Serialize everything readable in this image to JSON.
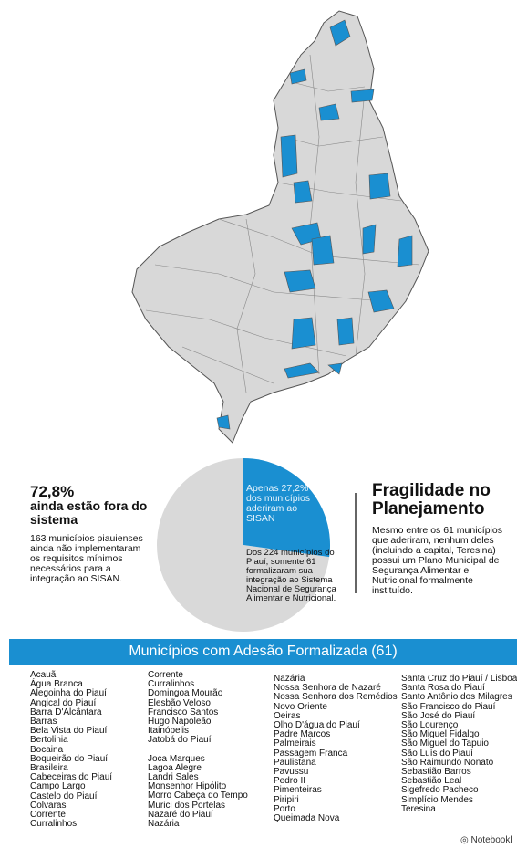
{
  "pie": {
    "type": "pie",
    "values": [
      72.8,
      27.2
    ],
    "colors": [
      "#d9d9d9",
      "#1a8fd1"
    ]
  },
  "left": {
    "headline": "72,8%",
    "subhead": "ainda estão fora do sistema",
    "body": "163 municípios piauienses ainda não implementaram os requisitos mínimos necessários para a integração ao SISAN."
  },
  "slice_label": "Apenas 27,2% dos municípios aderiram ao SISAN",
  "pie_note": "Dos 224 municípios do Piauí, somente 61 formalizaram sua integração ao Sistema Nacional de Segurança Alimentar e Nutricional.",
  "right": {
    "title": "Fragilidade no Planejamento",
    "body": "Mesmo entre os 61 municípios que aderiram, nenhum deles (incluindo a capital, Teresina) possui um Plano Municipal de Segurança Alimentar e Nutricional formalmente instituído."
  },
  "banner": "Municípios com Adesão Formalizada (61)",
  "columns": [
    [
      "Acauã",
      "Água Branca",
      "Alegoinha do Piauí",
      "Angical do Piauí",
      "Barra D'Alcântara",
      "Barras",
      "Bela Vista do Piauí",
      "Bertolinia",
      "Bocaina",
      "Boqueirão do Piauí",
      "Brasileira",
      "Cabeceiras do Piauí",
      "Campo Largo",
      "Castelo do Piauí",
      "Colvaras",
      "Corrente",
      "Curralinhos"
    ],
    [
      "Corrente",
      "Curralinhos",
      "Domingoa Mourão",
      "Elesbão Veloso",
      "Francisco Santos",
      "Hugo Napoleão",
      "Itainópelis",
      "Jatobá do Piauí",
      "Joca Marques",
      "Lagoa Alegre",
      "Landri Sales",
      "Monsenhor Hipólito",
      "Morro Cabeça do Tempo",
      "Murici dos Portelas",
      "Nazaré do Piauí",
      "Nazária"
    ],
    [
      "Nazária",
      "Nossa Senhora de Nazaré",
      "Nossa Senhora dos Remédios",
      "Novo Oriente",
      "Oeiras",
      "Olho D'água do Piauí",
      "Padre Marcos",
      "Palmeirais",
      "Passagem Franca",
      "Paulistana",
      "Pavussu",
      "Pedro II",
      "Pimenteiras",
      "Piripiri",
      "Porto",
      "Queimada Nova"
    ],
    [
      "Santa Cruz do Piauí / Lisboa",
      "Santa Rosa do Piauí",
      "Santo Antônio dos Milagres",
      "São Francisco do Piauí",
      "São José do Piauí",
      "São Lourenço",
      "São Miguel Fidalgo",
      "São Miguel do Tapuio",
      "São Luís do Piauí",
      "São Raimundo Nonato",
      "Sebastião Barros",
      "Sebastião Leal",
      "Sigefredo Pacheco",
      "Simplício Mendes",
      "Teresina"
    ]
  ],
  "footer": "Notebookl"
}
